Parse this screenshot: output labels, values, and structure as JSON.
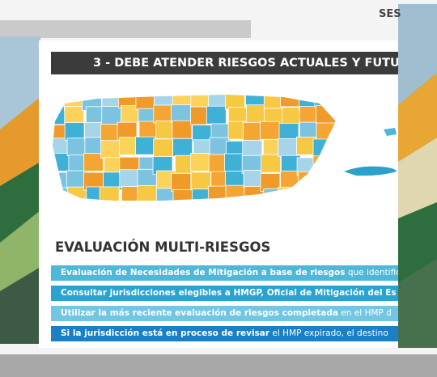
{
  "header": {
    "corner_text": "SES"
  },
  "slide": {
    "title": "3 - DEBE ATENDER RIESGOS ACTUALES Y FUTU",
    "heading": "EVALUACIÓN MULTI-RIESGOS",
    "items": [
      {
        "bold": "Evaluación de Necesidades de Mitigación a base de riesgos",
        "normal": " que identifica"
      },
      {
        "bold": "Consultar jurisdicciones elegibles a HMGP, Oficial de Mitigación del Es",
        "normal": ""
      },
      {
        "bold": "Utilizar la más reciente evaluación de riesgos completada",
        "normal": " en el HMP d"
      },
      {
        "bold": "Si la jurisdicción está en proceso de revisar",
        "normal": " el HMP expirado, el destino"
      }
    ]
  }
}
